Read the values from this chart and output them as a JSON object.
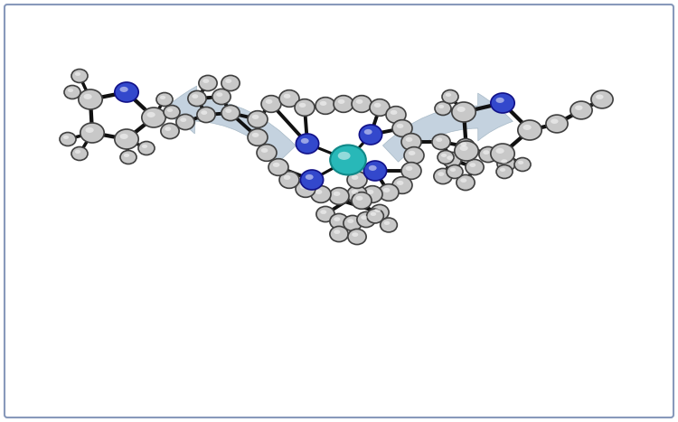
{
  "background_color": "#ffffff",
  "border_color": "#8899bb",
  "atom_gray_face": "#c8c8c8",
  "atom_gray_edge": "#404040",
  "atom_blue_face": "#3348cc",
  "atom_blue_edge": "#111188",
  "atom_teal_face": "#28b8b8",
  "atom_teal_edge": "#108888",
  "bond_color": "#111111",
  "arrow_face": "#b8c8d8",
  "arrow_edge": "#9aafbe",
  "bond_lw": 2.8,
  "figsize": [
    7.5,
    4.67
  ],
  "dpi": 100
}
